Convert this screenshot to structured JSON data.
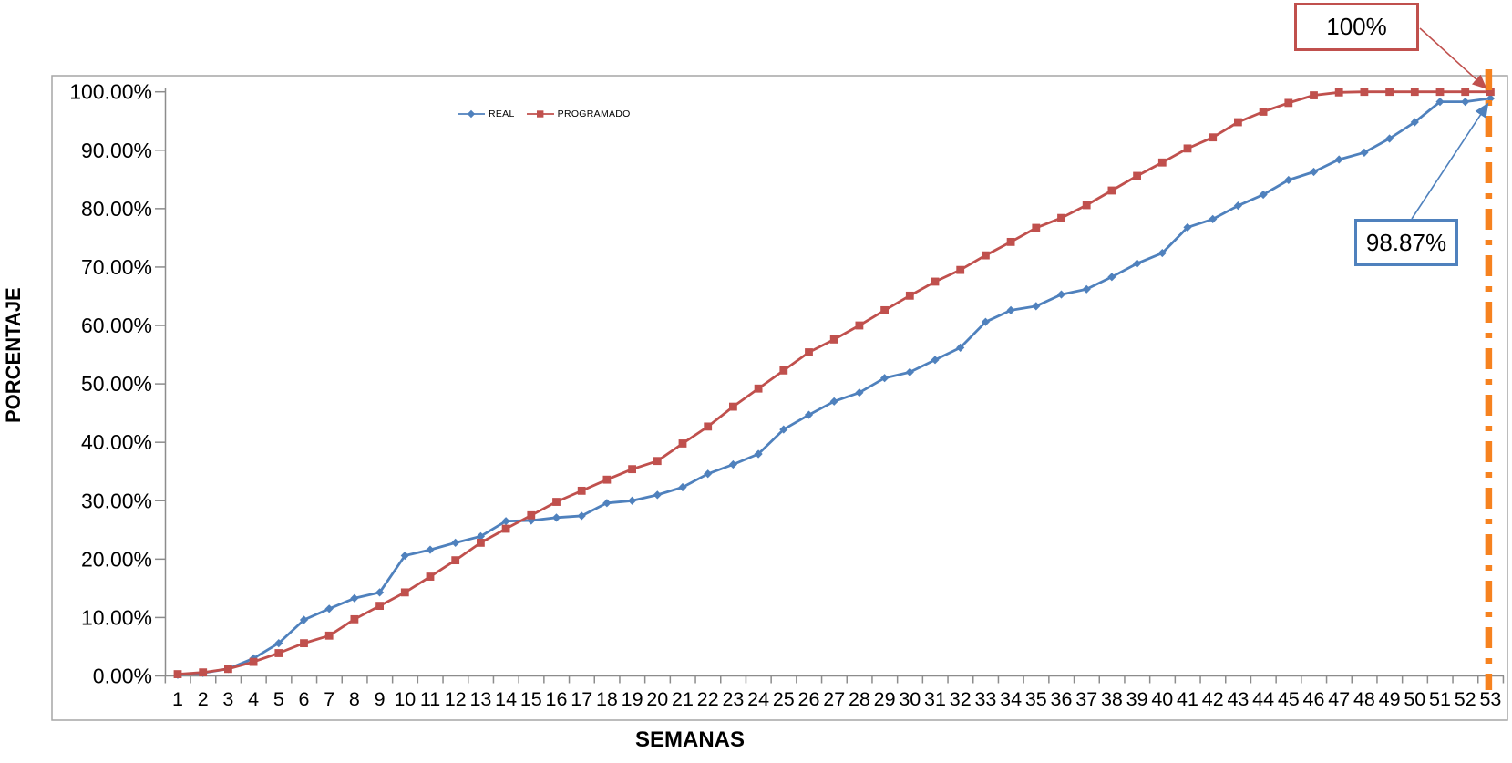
{
  "chart_data": {
    "type": "line",
    "title": "",
    "xlabel": "SEMANAS",
    "ylabel": "PORCENTAJE",
    "grid": false,
    "legend_position": "inside-top-left-of-plot",
    "ylim": [
      0,
      100
    ],
    "x_categories": [
      "1",
      "2",
      "3",
      "4",
      "5",
      "6",
      "7",
      "8",
      "9",
      "10",
      "11",
      "12",
      "13",
      "14",
      "15",
      "16",
      "17",
      "18",
      "19",
      "20",
      "21",
      "22",
      "23",
      "24",
      "25",
      "26",
      "27",
      "28",
      "29",
      "30",
      "31",
      "32",
      "33",
      "34",
      "35",
      "36",
      "37",
      "38",
      "39",
      "40",
      "41",
      "42",
      "43",
      "44",
      "45",
      "46",
      "47",
      "48",
      "49",
      "50",
      "51",
      "52",
      "53"
    ],
    "yticks": [
      {
        "value": 0,
        "label": "0.00%"
      },
      {
        "value": 10,
        "label": "10.00%"
      },
      {
        "value": 20,
        "label": "20.00%"
      },
      {
        "value": 30,
        "label": "30.00%"
      },
      {
        "value": 40,
        "label": "40.00%"
      },
      {
        "value": 50,
        "label": "50.00%"
      },
      {
        "value": 60,
        "label": "60.00%"
      },
      {
        "value": 70,
        "label": "70.00%"
      },
      {
        "value": 80,
        "label": "80.00%"
      },
      {
        "value": 90,
        "label": "90.00%"
      },
      {
        "value": 100,
        "label": "100.00%"
      }
    ],
    "series": [
      {
        "name": "REAL",
        "color": "#4F81BD",
        "marker": "diamond",
        "values": [
          0.2,
          0.5,
          1.2,
          3.0,
          5.6,
          9.6,
          11.5,
          13.3,
          14.3,
          20.6,
          21.6,
          22.8,
          23.9,
          26.5,
          26.6,
          27.1,
          27.4,
          29.6,
          30.0,
          31.0,
          32.3,
          34.6,
          36.2,
          38.0,
          42.2,
          44.7,
          47.0,
          48.5,
          51.0,
          52.0,
          54.1,
          56.2,
          60.6,
          62.6,
          63.3,
          65.3,
          66.2,
          68.3,
          70.6,
          72.4,
          76.8,
          78.2,
          80.5,
          82.4,
          84.9,
          86.3,
          88.4,
          89.6,
          92.0,
          94.8,
          98.3,
          98.3,
          98.87
        ]
      },
      {
        "name": "PROGRAMADO",
        "color": "#C0504D",
        "marker": "square",
        "values": [
          0.3,
          0.6,
          1.2,
          2.4,
          3.9,
          5.6,
          6.9,
          9.7,
          12.0,
          14.3,
          17.0,
          19.8,
          22.8,
          25.2,
          27.5,
          29.8,
          31.7,
          33.6,
          35.4,
          36.8,
          39.8,
          42.7,
          46.1,
          49.2,
          52.3,
          55.4,
          57.6,
          60.0,
          62.6,
          65.1,
          67.5,
          69.5,
          72.0,
          74.3,
          76.7,
          78.4,
          80.6,
          83.1,
          85.6,
          87.9,
          90.3,
          92.2,
          94.8,
          96.6,
          98.1,
          99.4,
          99.9,
          100,
          100,
          100,
          100,
          100,
          100
        ]
      }
    ],
    "reference_line": {
      "axis": "x",
      "week": 53,
      "color": "#F6821F",
      "style": "dash-dot"
    },
    "annotations": [
      {
        "text": "100%",
        "series": "PROGRAMADO",
        "week": 53,
        "value": 100,
        "box_color": "#C0504D"
      },
      {
        "text": "98.87%",
        "series": "REAL",
        "week": 53,
        "value": 98.87,
        "box_color": "#4F81BD"
      }
    ]
  }
}
